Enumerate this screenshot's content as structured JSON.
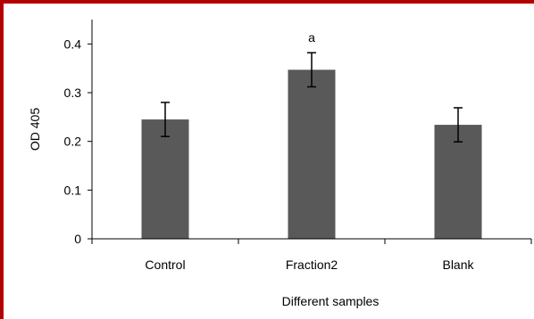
{
  "colors": {
    "frame": "#b40000",
    "bar": "#595959",
    "axis": "#000000",
    "error": "#000000"
  },
  "chart_data": {
    "type": "bar",
    "title": "",
    "xlabel": "Different samples",
    "ylabel": "OD 405",
    "categories": [
      "Control",
      "Fraction2",
      "Blank"
    ],
    "values": [
      0.245,
      0.347,
      0.234
    ],
    "errors": [
      0.035,
      0.035,
      0.035
    ],
    "annotations": [
      "",
      "a",
      ""
    ],
    "ylim": [
      0,
      0.45
    ],
    "yticks": [
      0,
      0.1,
      0.2,
      0.3,
      0.4
    ],
    "ytick_labels": [
      "0",
      "0.1",
      "0.2",
      "0.3",
      "0.4"
    ],
    "grid": false,
    "legend": "none"
  }
}
